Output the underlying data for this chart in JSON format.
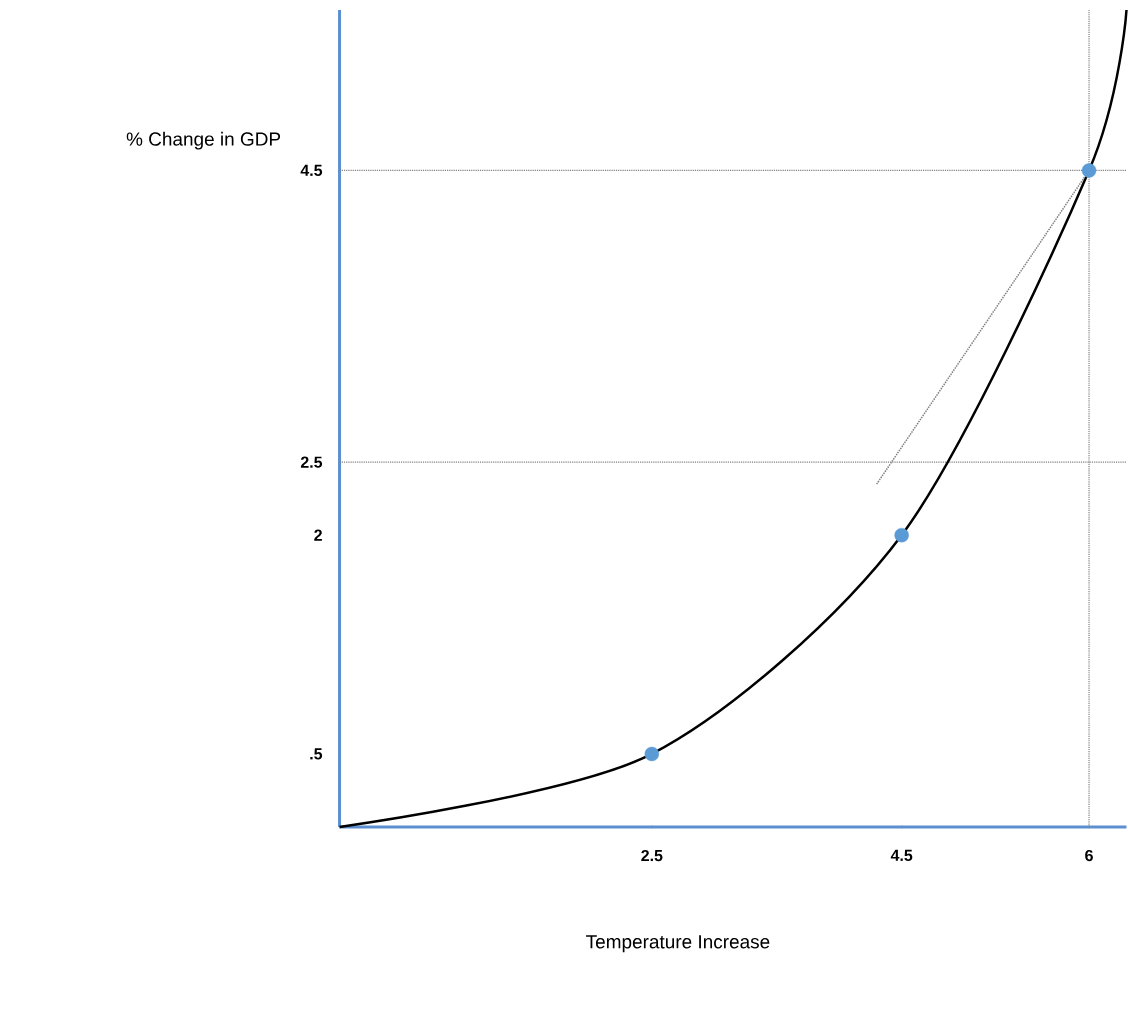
{
  "chart_data": {
    "type": "scatter",
    "xlabel": "Temperature Increase",
    "ylabel": "% Change in GDP",
    "xlim": [
      0,
      6.3
    ],
    "ylim": [
      0,
      5.6
    ],
    "xticks": [
      2.5,
      4.5,
      6
    ],
    "yticks": [
      {
        "value": 0.5,
        "label": ".5"
      },
      2,
      2.5,
      4.5
    ],
    "grid": false,
    "marker": "circle",
    "series": [
      {
        "type": "line",
        "color": "#000000",
        "x": [
          0,
          2.5,
          4.5,
          6,
          6.3
        ],
        "values": [
          0,
          0.5,
          2,
          4.5,
          5.6
        ],
        "marker": "none",
        "line_style": "solid"
      },
      {
        "type": "line",
        "color": "#808080",
        "x": [
          4.3,
          6
        ],
        "values": [
          2.35,
          4.5
        ],
        "marker": "none",
        "line_style": "dotted"
      },
      {
        "color": "#5b9bd5",
        "x": [
          2.5,
          4.5,
          6
        ],
        "values": [
          0.5,
          2,
          4.5
        ]
      }
    ],
    "ref_lines": [
      {
        "axis": "y",
        "value": 4.5,
        "color": "#808080",
        "line_style": "dotted"
      },
      {
        "axis": "y",
        "value": 2.5,
        "color": "#808080",
        "line_style": "dotted"
      },
      {
        "axis": "x",
        "value": 6,
        "color": "#808080",
        "line_style": "dotted"
      }
    ]
  }
}
